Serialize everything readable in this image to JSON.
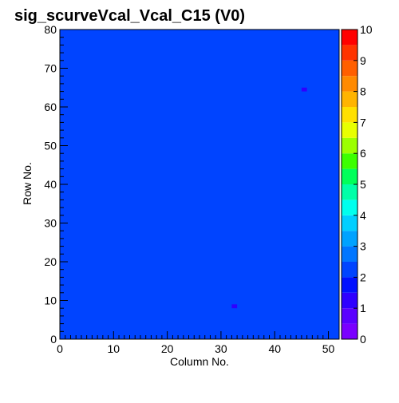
{
  "chart_data": {
    "type": "heatmap",
    "title": "sig_scurveVcal_Vcal_C15 (V0)",
    "xlabel": "Column No.",
    "ylabel": "Row No.",
    "xlim": [
      0,
      52
    ],
    "ylim": [
      0,
      80
    ],
    "x_ticks": [
      "0",
      "10",
      "20",
      "30",
      "40",
      "50"
    ],
    "y_ticks": [
      "0",
      "10",
      "20",
      "30",
      "40",
      "50",
      "60",
      "70",
      "80"
    ],
    "columns": 52,
    "rows": 80,
    "zlim": [
      0,
      10
    ],
    "z_ticks": [
      "0",
      "1",
      "2",
      "3",
      "4",
      "5",
      "6",
      "7",
      "8",
      "9",
      "10"
    ],
    "background_value": 2.25,
    "frame": true,
    "legend": "colorbar on right",
    "palette": [
      "#7a00ff",
      "#5a00ff",
      "#2e00ff",
      "#0010ff",
      "#0044ff",
      "#0076ff",
      "#00a2ff",
      "#00cfff",
      "#00ffee",
      "#00ffa8",
      "#00ff5a",
      "#3cff00",
      "#9cff00",
      "#e8ff00",
      "#ffe000",
      "#ffb400",
      "#ff8a00",
      "#ff5f00",
      "#ff3300",
      "#ff0000"
    ],
    "notable_cells": [
      {
        "x": 32,
        "y": 8,
        "value": 1.3
      },
      {
        "x": 45,
        "y": 64,
        "value": 1.4
      }
    ]
  }
}
